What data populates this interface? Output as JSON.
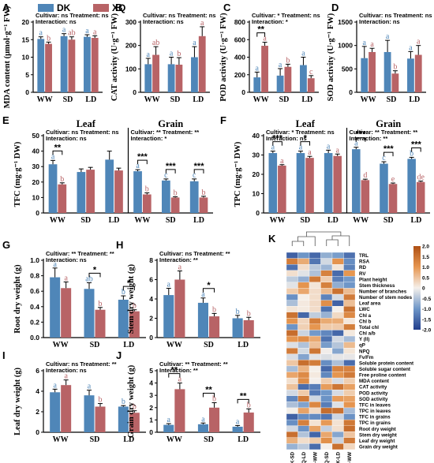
{
  "figure": {
    "legend": {
      "items": [
        {
          "label": "DK",
          "color": "#4F86B8"
        },
        {
          "label": "XQ",
          "color": "#B86366"
        }
      ]
    },
    "heatmap_panel": {
      "label": "K",
      "column_labels": [
        "DK-SD",
        "XQ-LD",
        "DK-WW",
        "XQ-SD",
        "DK-LD",
        "XQ-WW"
      ],
      "row_labels": [
        "TRL",
        "RSA",
        "RD",
        "RV",
        "Plant height",
        "Stem thickness",
        "Number of branches",
        "Number of stem nodes",
        "Leaf area",
        "LWC",
        "Chl a",
        "Chl b",
        "Total chl",
        "Chl a/b",
        "Y (II)",
        "qP",
        "NPQ",
        "Fv/Fm",
        "Soluble protein content",
        "Soluble sugar content",
        "Free proline content",
        "MDA content",
        "CAT activity",
        "POD activity",
        "SOD activity",
        "TFC in leaves",
        "TPC in leaves",
        "TFC in grains",
        "TPC in grains",
        "Root dry weight",
        "Stem dry weight",
        "Leaf dry weight",
        "Grain dry weight"
      ],
      "colorbar_ticks": [
        "2.0",
        "1.5",
        "1.0",
        "0.5",
        "0",
        "-0.5",
        "-1.0",
        "-1.5",
        "-2.0"
      ]
    }
  },
  "chart_data": [
    {
      "panel": "A",
      "type": "bar",
      "ylabel": "MDA content (μmol·g⁻¹ FW)",
      "categories": [
        "WW",
        "SD",
        "LD"
      ],
      "stats": [
        "Cultivar: ns  Treatment: ns",
        "Interaction: ns"
      ],
      "ylim": [
        0,
        20
      ],
      "yticks": [
        0,
        5,
        10,
        15,
        20
      ],
      "series": [
        {
          "name": "DK",
          "values": [
            15.2,
            16.0,
            15.8
          ],
          "errors": [
            0.6,
            0.7,
            0.6
          ],
          "letters": [
            "a",
            "a",
            "a"
          ]
        },
        {
          "name": "XQ",
          "values": [
            13.8,
            15.0,
            15.5
          ],
          "errors": [
            0.5,
            0.8,
            0.6
          ],
          "letters": [
            "b",
            "ab",
            "a"
          ]
        }
      ]
    },
    {
      "panel": "B",
      "type": "bar",
      "ylabel": "CAT activity (U·g⁻¹ FW)",
      "categories": [
        "WW",
        "SD",
        "LD"
      ],
      "stats": [
        "Cultivar: ns  Treatment: ns",
        "Interaction: ns"
      ],
      "ylim": [
        0,
        300
      ],
      "yticks": [
        0,
        100,
        200,
        300
      ],
      "series": [
        {
          "name": "DK",
          "values": [
            120,
            120,
            150
          ],
          "errors": [
            25,
            30,
            45
          ],
          "letters": [
            "a",
            "a",
            "a"
          ]
        },
        {
          "name": "XQ",
          "values": [
            160,
            118,
            240
          ],
          "errors": [
            35,
            30,
            40
          ],
          "letters": [
            "ab",
            "b",
            "a"
          ]
        }
      ]
    },
    {
      "panel": "C",
      "type": "bar",
      "ylabel": "POD activity (U·g⁻¹ FW)",
      "categories": [
        "WW",
        "SD",
        "LD"
      ],
      "stats": [
        "Cultivar: *  Treatment: ns",
        "Interaction: *"
      ],
      "ylim": [
        0,
        800
      ],
      "yticks": [
        0,
        200,
        400,
        600,
        800
      ],
      "series": [
        {
          "name": "DK",
          "values": [
            170,
            190,
            310
          ],
          "errors": [
            60,
            80,
            90
          ],
          "letters": [
            "a",
            "a",
            "a"
          ]
        },
        {
          "name": "XQ",
          "values": [
            530,
            290,
            160
          ],
          "errors": [
            40,
            30,
            30
          ],
          "letters": [
            "a",
            "b",
            "c"
          ]
        }
      ],
      "significance": [
        {
          "category": 0,
          "mark": "**"
        }
      ]
    },
    {
      "panel": "D",
      "type": "bar",
      "ylabel": "SOD activity (U·g⁻¹ FW)",
      "categories": [
        "WW",
        "SD",
        "LD"
      ],
      "stats": [
        "Cultivar: ns  Treatment: ns",
        "Interaction: ns"
      ],
      "ylim": [
        0,
        1500
      ],
      "yticks": [
        0,
        500,
        1000,
        1500
      ],
      "series": [
        {
          "name": "DK",
          "values": [
            730,
            860,
            720
          ],
          "errors": [
            250,
            250,
            150
          ],
          "letters": [
            "a",
            "a",
            "a"
          ]
        },
        {
          "name": "XQ",
          "values": [
            860,
            400,
            800
          ],
          "errors": [
            80,
            60,
            200
          ],
          "letters": [
            "a",
            "b",
            "a"
          ]
        }
      ]
    },
    {
      "panel": "E",
      "type": "bar",
      "ylabel": "TFC (mg·g⁻¹ DW)",
      "categories": [
        "WW",
        "SD",
        "LD",
        "WW",
        "SD",
        "LD"
      ],
      "groups": [
        "Leaf",
        "Grain"
      ],
      "group_stats": [
        [
          "Cultivar: ns  Treatment: ns",
          "Interaction: ns"
        ],
        [
          "Cultivar: **  Treatment: **",
          "Interaction: *"
        ]
      ],
      "ylim": [
        0,
        50
      ],
      "yticks": [
        0,
        10,
        20,
        30,
        40,
        50
      ],
      "series": [
        {
          "name": "DK",
          "values": [
            31.5,
            26.5,
            34.5,
            27.0,
            21.0,
            20.5
          ],
          "errors": [
            2.5,
            2.0,
            5.5,
            1.0,
            1.0,
            1.5
          ],
          "letters": [
            "a",
            "",
            "",
            "a",
            "c",
            "c"
          ]
        },
        {
          "name": "XQ",
          "values": [
            18.5,
            28.0,
            27.5,
            12.0,
            10.0,
            10.0
          ],
          "errors": [
            1.0,
            1.5,
            1.5,
            1.0,
            0.5,
            0.8
          ],
          "letters": [
            "b",
            "",
            "",
            "b",
            "b",
            "b"
          ]
        }
      ],
      "significance": [
        {
          "category": 0,
          "mark": "**"
        },
        {
          "category": 3,
          "mark": "***"
        },
        {
          "category": 4,
          "mark": "***"
        },
        {
          "category": 5,
          "mark": "***"
        }
      ]
    },
    {
      "panel": "F",
      "type": "bar",
      "ylabel": "TPC (mg·g⁻¹ DW)",
      "categories": [
        "WW",
        "SD",
        "LD",
        "WW",
        "SD",
        "LD"
      ],
      "groups": [
        "Leaf",
        "Grain"
      ],
      "group_stats": [
        [
          "Cultivar: *  Treatment: ns",
          "Interaction: ns"
        ],
        [
          "Cultivar: **  Treatment: **",
          "Interaction: **"
        ]
      ],
      "ylim": [
        0,
        40
      ],
      "yticks": [
        0,
        10,
        20,
        30,
        40
      ],
      "series": [
        {
          "name": "DK",
          "values": [
            31.0,
            31.0,
            31.0,
            33.0,
            25.5,
            28.0
          ],
          "errors": [
            1.0,
            1.0,
            1.5,
            1.0,
            1.0,
            0.8
          ],
          "letters": [
            "a",
            "a",
            "a",
            "a",
            "c",
            "b"
          ]
        },
        {
          "name": "XQ",
          "values": [
            24.5,
            28.5,
            29.5,
            17.0,
            15.0,
            16.0
          ],
          "errors": [
            0.5,
            0.8,
            1.0,
            0.5,
            0.5,
            0.5
          ],
          "letters": [
            "a",
            "a",
            "a",
            "d",
            "e",
            "de"
          ]
        }
      ],
      "significance": [
        {
          "category": 0,
          "mark": "***"
        },
        {
          "category": 1,
          "mark": "*"
        },
        {
          "category": 3,
          "mark": "***"
        },
        {
          "category": 4,
          "mark": "***"
        },
        {
          "category": 5,
          "mark": "***"
        }
      ]
    },
    {
      "panel": "G",
      "type": "bar",
      "ylabel": "Root dry weight (g)",
      "categories": [
        "WW",
        "SD",
        "LD"
      ],
      "stats": [
        "Cultivar: **  Treatment: **",
        "Interaction: ns"
      ],
      "ylim": [
        0,
        1.0
      ],
      "yticks": [
        0.0,
        0.2,
        0.4,
        0.6,
        0.8,
        1.0
      ],
      "series": [
        {
          "name": "DK",
          "values": [
            0.78,
            0.63,
            0.49
          ],
          "errors": [
            0.12,
            0.08,
            0.05
          ],
          "letters": [
            "a",
            "ab",
            "b"
          ]
        },
        {
          "name": "XQ",
          "values": [
            0.64,
            0.36,
            0.34
          ],
          "errors": [
            0.08,
            0.03,
            0.02
          ],
          "letters": [
            "a",
            "b",
            "b"
          ]
        }
      ],
      "significance": [
        {
          "category": 1,
          "mark": "*"
        },
        {
          "category": 2,
          "mark": "*"
        }
      ]
    },
    {
      "panel": "H",
      "type": "bar",
      "ylabel": "Stem dry weight (g)",
      "categories": [
        "WW",
        "SD",
        "LD"
      ],
      "stats": [
        "Cultivar: ns  Treatment: **",
        "Interaction: **"
      ],
      "ylim": [
        0,
        8
      ],
      "yticks": [
        0,
        2,
        4,
        6,
        8
      ],
      "series": [
        {
          "name": "DK",
          "values": [
            4.4,
            3.6,
            2.0
          ],
          "errors": [
            0.7,
            0.5,
            0.3
          ],
          "letters": [
            "a",
            "a",
            "b"
          ]
        },
        {
          "name": "XQ",
          "values": [
            6.0,
            2.2,
            1.8
          ],
          "errors": [
            0.9,
            0.3,
            0.3
          ],
          "letters": [
            "a",
            "b",
            "b"
          ]
        }
      ],
      "significance": [
        {
          "category": 1,
          "mark": "*"
        }
      ]
    },
    {
      "panel": "I",
      "type": "bar",
      "ylabel": "Leaf dry weight (g)",
      "categories": [
        "WW",
        "SD",
        "LD"
      ],
      "stats": [
        "Cultivar: ns  Treatment: **",
        "Interaction: ns"
      ],
      "ylim": [
        0,
        6
      ],
      "yticks": [
        0,
        2,
        4,
        6
      ],
      "series": [
        {
          "name": "DK",
          "values": [
            3.9,
            3.6,
            2.5
          ],
          "errors": [
            0.3,
            0.5,
            0.1
          ],
          "letters": [
            "a",
            "a",
            "b"
          ]
        },
        {
          "name": "XQ",
          "values": [
            4.6,
            2.5,
            1.9
          ],
          "errors": [
            0.5,
            0.3,
            0.2
          ],
          "letters": [
            "a",
            "b",
            "b"
          ]
        }
      ]
    },
    {
      "panel": "J",
      "type": "bar",
      "ylabel": "Grain dry weight (g)",
      "categories": [
        "WW",
        "SD",
        "LD"
      ],
      "stats": [
        "Cultivar: **  Treatment: **",
        "Interaction: **"
      ],
      "ylim": [
        0,
        5
      ],
      "yticks": [
        0,
        1,
        2,
        3,
        4,
        5
      ],
      "series": [
        {
          "name": "DK",
          "values": [
            0.6,
            0.65,
            0.45
          ],
          "errors": [
            0.1,
            0.1,
            0.1
          ],
          "letters": [
            "a",
            "a",
            "a"
          ]
        },
        {
          "name": "XQ",
          "values": [
            3.5,
            2.0,
            1.6
          ],
          "errors": [
            0.5,
            0.4,
            0.3
          ],
          "letters": [
            "a",
            "b",
            "b"
          ]
        }
      ],
      "significance": [
        {
          "category": 0,
          "mark": "**"
        },
        {
          "category": 1,
          "mark": "**"
        },
        {
          "category": 2,
          "mark": "**"
        }
      ]
    },
    {
      "panel": "K",
      "type": "heatmap"
    }
  ]
}
